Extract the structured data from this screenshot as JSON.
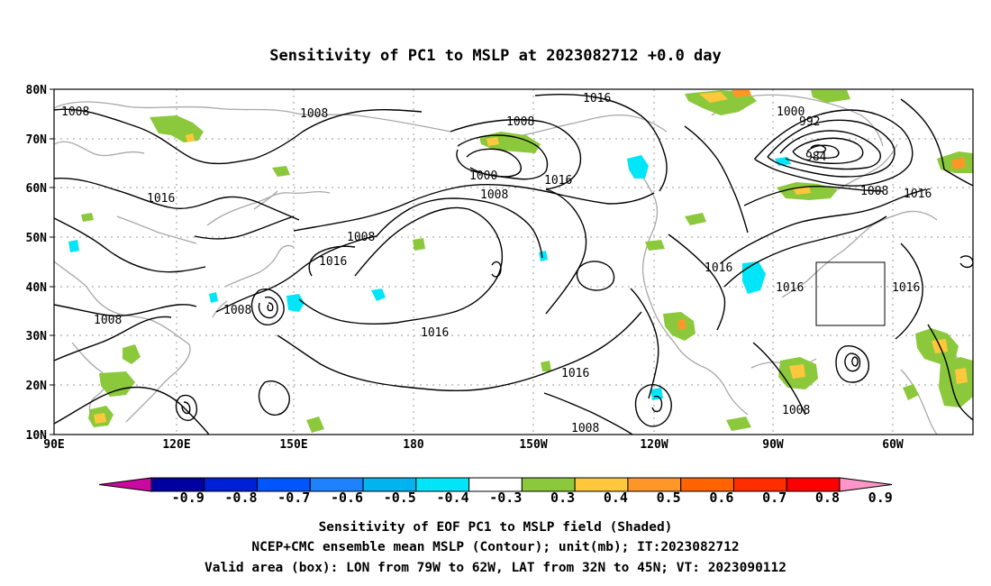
{
  "title": "Sensitivity of PC1 to MSLP at 2023082712 +0.0 day",
  "lat_ticks": [
    "80N",
    "70N",
    "60N",
    "50N",
    "40N",
    "30N",
    "20N",
    "10N"
  ],
  "lon_ticks": [
    "90E",
    "120E",
    "150E",
    "180",
    "150W",
    "120W",
    "90W",
    "60W"
  ],
  "contour_labels": [
    {
      "text": "1008",
      "near": "Siberia"
    },
    {
      "text": "1008",
      "near": "E Siberia"
    },
    {
      "text": "1016",
      "near": "Mongolia"
    },
    {
      "text": "1008",
      "near": "W Pacific"
    },
    {
      "text": "1008",
      "near": "S China"
    },
    {
      "text": "1016",
      "near": "Japan"
    },
    {
      "text": "1008",
      "near": "Aleutians"
    },
    {
      "text": "1000",
      "near": "Alaska"
    },
    {
      "text": "1008",
      "near": "Alaska"
    },
    {
      "text": "1008",
      "near": "Bering Sea"
    },
    {
      "text": "1016",
      "near": "Alaska"
    },
    {
      "text": "1016",
      "near": "Arctic"
    },
    {
      "text": "1016",
      "near": "NE Pacific"
    },
    {
      "text": "1016",
      "near": "E Pacific"
    },
    {
      "text": "1008",
      "near": "E Pacific"
    },
    {
      "text": "1000",
      "near": "Greenland"
    },
    {
      "text": "992",
      "near": "Greenland"
    },
    {
      "text": "984",
      "near": "Greenland"
    },
    {
      "text": "1008",
      "near": "Labrador"
    },
    {
      "text": "1016",
      "near": "N Atlantic"
    },
    {
      "text": "1016",
      "near": "Great Lakes"
    },
    {
      "text": "1016",
      "near": "W Atlantic"
    },
    {
      "text": "1016",
      "near": "Central Atlantic"
    },
    {
      "text": "1008",
      "near": "Caribbean"
    }
  ],
  "colorbar": {
    "labels": [
      "-0.9",
      "-0.8",
      "-0.7",
      "-0.6",
      "-0.5",
      "-0.4",
      "-0.3",
      "0.3",
      "0.4",
      "0.5",
      "0.6",
      "0.7",
      "0.8",
      "0.9"
    ],
    "colors": [
      "#c80aa0",
      "#0000a0",
      "#0020d8",
      "#0055ff",
      "#1e82ff",
      "#00b4f0",
      "#00e6f8",
      "#ffffff",
      "#8cc83c",
      "#ffc83c",
      "#ff9628",
      "#ff6400",
      "#ff2d00",
      "#ff0000",
      "#ff96c8"
    ]
  },
  "caption": [
    "Sensitivity of EOF PC1 to MSLP field (Shaded)",
    "NCEP+CMC ensemble mean MSLP (Contour); unit(mb); IT:2023082712",
    "Valid area (box): LON from 79W to 62W, LAT from 32N to 45N; VT: 2023090112"
  ]
}
